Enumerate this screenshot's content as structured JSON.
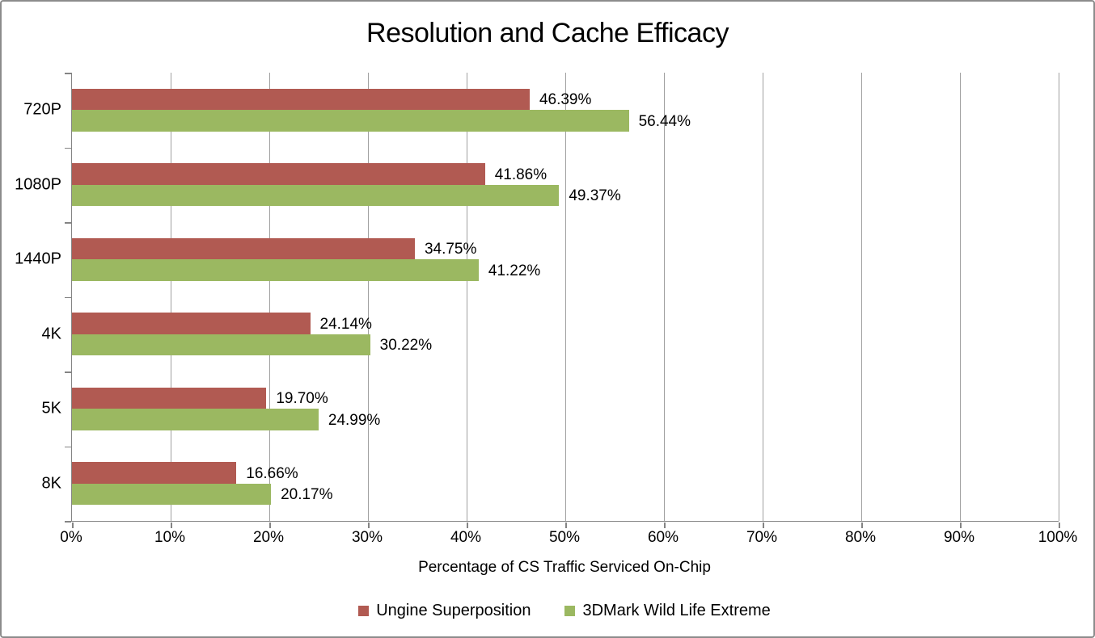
{
  "chart_data": {
    "type": "bar",
    "orientation": "horizontal",
    "title": "Resolution and Cache Efficacy",
    "xlabel": "Percentage of CS Traffic Serviced On-Chip",
    "xlim": [
      0,
      100
    ],
    "x_tick_labels": [
      "0%",
      "10%",
      "20%",
      "30%",
      "40%",
      "50%",
      "60%",
      "70%",
      "80%",
      "90%",
      "100%"
    ],
    "grid": "vertical-only",
    "legend_position": "bottom",
    "categories": [
      "720P",
      "1080P",
      "1440P",
      "4K",
      "5K",
      "8K"
    ],
    "series": [
      {
        "name": "Ungine Superposition",
        "color": "#B15A52",
        "values": [
          46.39,
          41.86,
          34.75,
          24.14,
          19.7,
          16.66
        ],
        "labels": [
          "46.39%",
          "41.86%",
          "34.75%",
          "24.14%",
          "19.70%",
          "16.66%"
        ]
      },
      {
        "name": "3DMark Wild Life Extreme",
        "color": "#9BB861",
        "values": [
          56.44,
          49.37,
          41.22,
          30.22,
          24.99,
          20.17
        ],
        "labels": [
          "56.44%",
          "49.37%",
          "41.22%",
          "30.22%",
          "24.99%",
          "20.17%"
        ]
      }
    ]
  },
  "colors": {
    "axis": "#848484",
    "gridline": "#A0A0A0",
    "border": "#8C8C8C",
    "text": "#000000",
    "background": "#FFFFFF"
  }
}
